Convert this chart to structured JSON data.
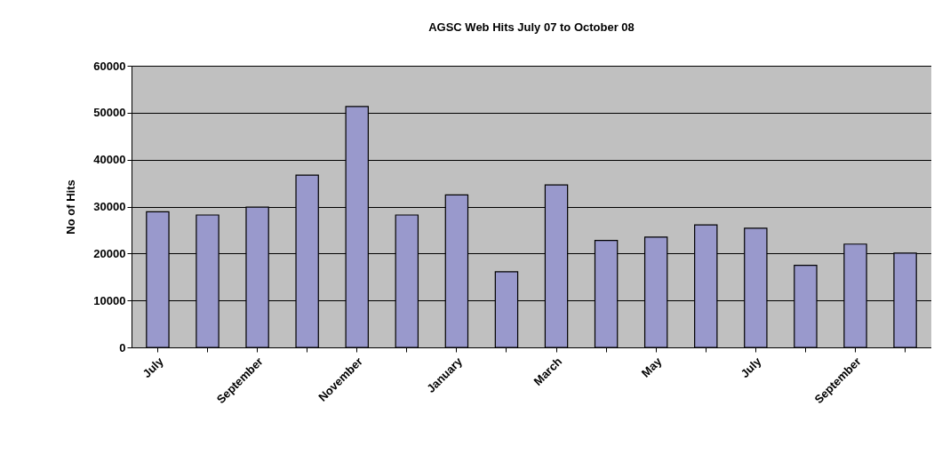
{
  "chart_data": {
    "type": "bar",
    "title": "AGSC Web Hits July 07 to October 08",
    "ylabel": "No of Hits",
    "categories": [
      "July",
      null,
      "September",
      null,
      "November",
      null,
      "January",
      null,
      "March",
      null,
      "May",
      null,
      "July",
      null,
      "September",
      null
    ],
    "values": [
      28900,
      28200,
      29900,
      36700,
      51300,
      28200,
      32500,
      16100,
      34600,
      22800,
      23500,
      26100,
      25400,
      17500,
      22000,
      20100
    ],
    "color": "#9999cc",
    "ylim": [
      0,
      60000
    ],
    "yticks": [
      0,
      10000,
      20000,
      30000,
      40000,
      50000,
      60000
    ],
    "grid": "y"
  }
}
